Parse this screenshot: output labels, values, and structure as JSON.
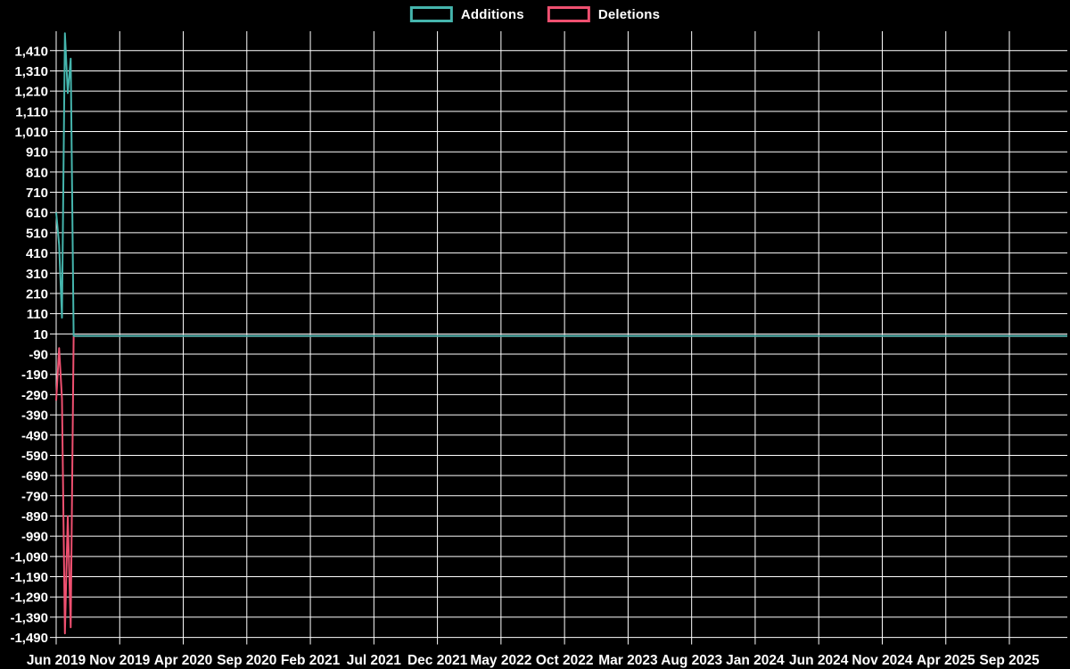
{
  "legend": {
    "items": [
      {
        "label": "Additions",
        "color": "#45b5ad"
      },
      {
        "label": "Deletions",
        "color": "#ef5070"
      }
    ]
  },
  "chart_data": {
    "type": "line",
    "title": "",
    "background_color": "#000000",
    "grid": true,
    "grid_color": "#ffffff",
    "legend_position": "top-center",
    "x_axis": {
      "unit": "weeks",
      "tick_labels": [
        "Jun 2019",
        "Nov 2019",
        "Apr 2020",
        "Sep 2020",
        "Feb 2021",
        "Jul 2021",
        "Dec 2021",
        "May 2022",
        "Oct 2022",
        "Mar 2023",
        "Aug 2023",
        "Jan 2024",
        "Jun 2024",
        "Nov 2024",
        "Apr 2025",
        "Sep 2025"
      ]
    },
    "y_axis": {
      "ylim": [
        -1494,
        1506
      ],
      "tick_values": [
        1410,
        1310,
        1210,
        1110,
        1010,
        910,
        810,
        710,
        610,
        510,
        410,
        310,
        210,
        110,
        10,
        -90,
        -190,
        -290,
        -390,
        -490,
        -590,
        -690,
        -790,
        -890,
        -990,
        -1090,
        -1190,
        -1290,
        -1390,
        -1490
      ],
      "tick_labels": [
        "1,410",
        "1,310",
        "1,210",
        "1,110",
        "1,010",
        "910",
        "810",
        "710",
        "610",
        "510",
        "410",
        "310",
        "210",
        "110",
        "10",
        "-90",
        "-190",
        "-290",
        "-390",
        "-490",
        "-590",
        "-690",
        "-790",
        "-890",
        "-990",
        "-1,090",
        "-1,190",
        "-1,290",
        "-1,390",
        "-1,490"
      ]
    },
    "series": [
      {
        "name": "Additions",
        "color": "#45b5ad",
        "weekly_values": [
          610,
          450,
          90,
          1496,
          1200,
          1370,
          0
        ],
        "extends_flat_zero_to_right_edge": true
      },
      {
        "name": "Deletions",
        "color": "#ef5070",
        "weekly_values": [
          -320,
          -60,
          -310,
          -1470,
          -890,
          -1440,
          0
        ],
        "extends_flat_zero_to_right_edge": true
      }
    ]
  }
}
